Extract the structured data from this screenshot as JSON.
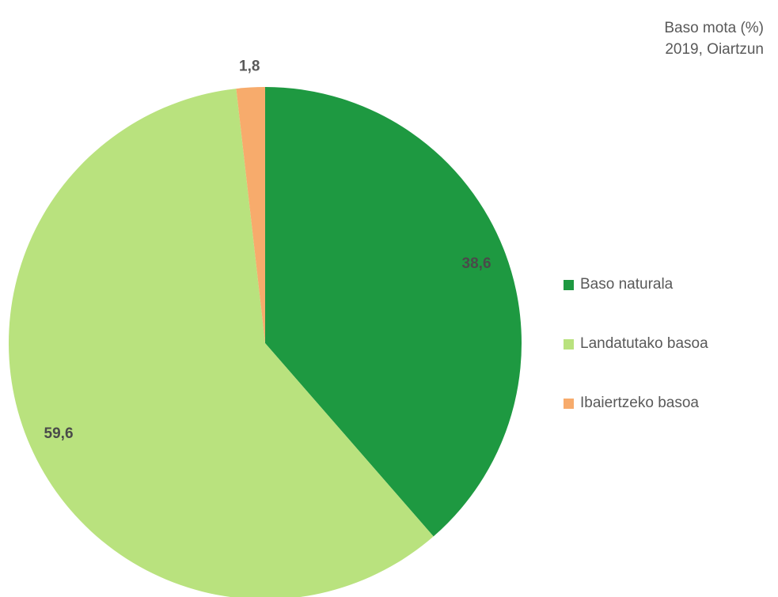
{
  "chart_data": {
    "type": "pie",
    "title": "Baso mota (%)",
    "subtitle": "2019, Oiartzun",
    "categories": [
      "Baso naturala",
      "Landatutako basoa",
      "Ibaiertzeko basoa"
    ],
    "values": [
      38.6,
      59.6,
      1.8
    ],
    "data_labels": [
      "38,6",
      "59,6",
      "1,8"
    ],
    "colors": [
      "#1e9941",
      "#b9e27e",
      "#f7ab6c"
    ],
    "legend_position": "right"
  }
}
